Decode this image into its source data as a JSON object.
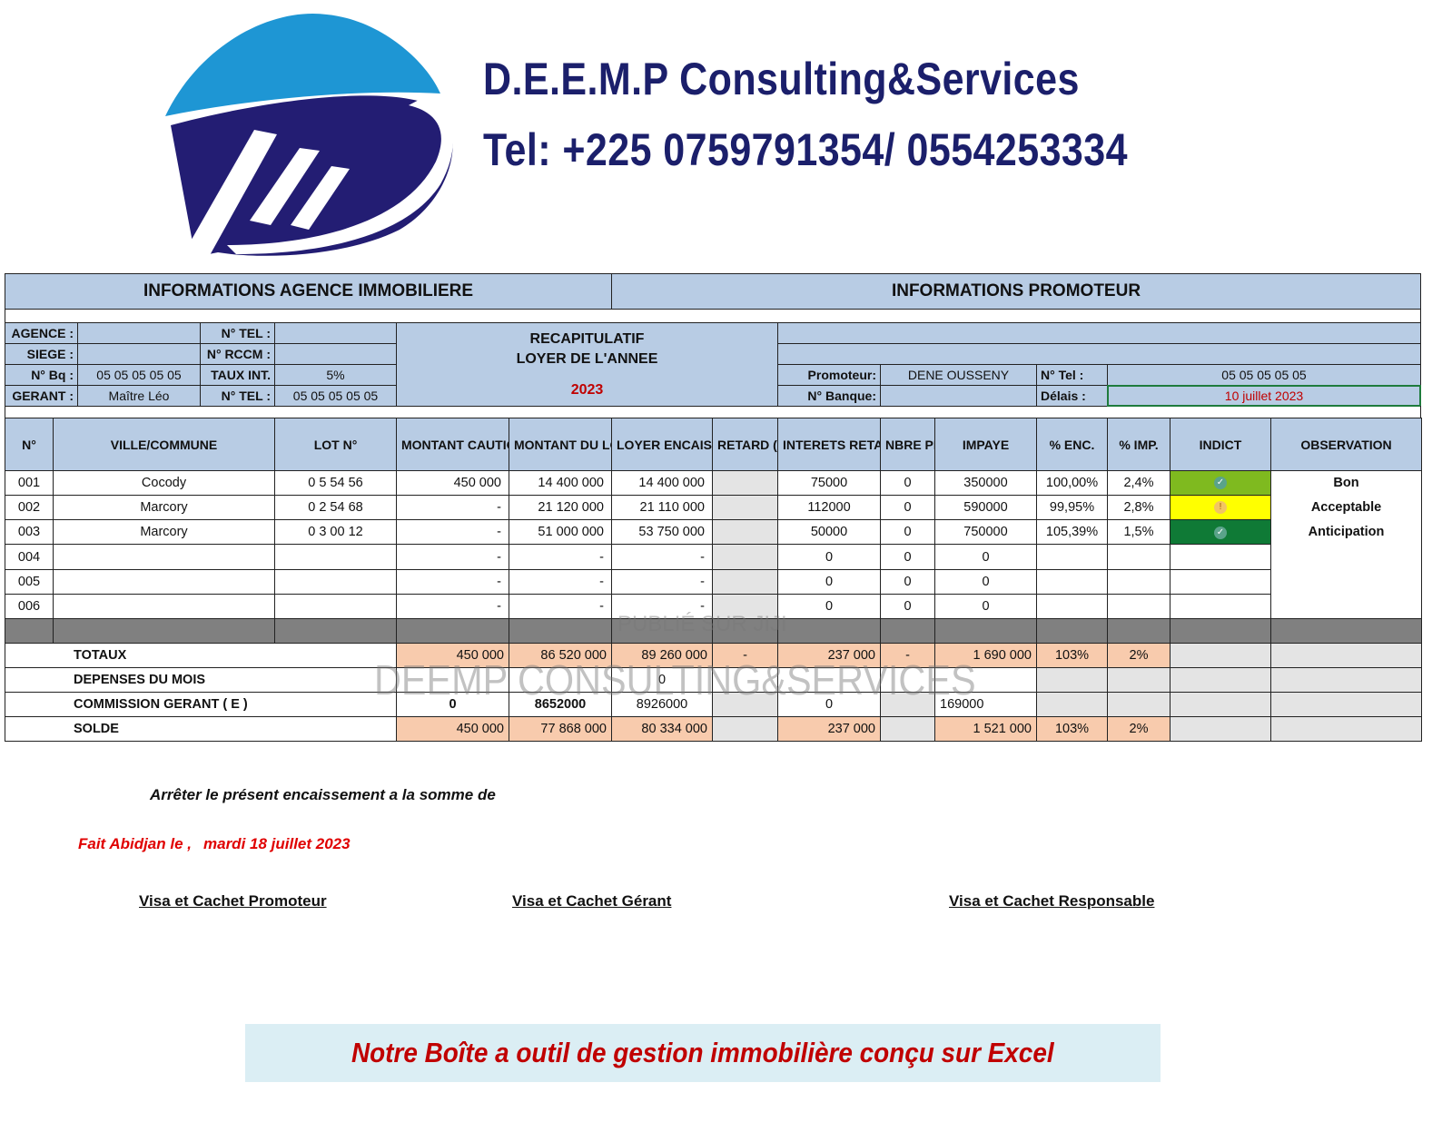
{
  "header": {
    "company": "D.E.E.M.P Consulting&Services",
    "phone": "Tel: +225 0759791354/ 0554253334"
  },
  "colors": {
    "navy": "#1b1f6b",
    "sky": "#1e96d4",
    "header_blue": "#b8cce4",
    "peach": "#f8cbad",
    "red": "#c00000"
  },
  "agency": {
    "title": "INFORMATIONS AGENCE IMMOBILIERE",
    "rows": [
      {
        "l1": "AGENCE :",
        "v1": "",
        "l2": "N° TEL :",
        "v2": ""
      },
      {
        "l1": "SIEGE :",
        "v1": "",
        "l2": "N° RCCM :",
        "v2": ""
      },
      {
        "l1": "N° Bq :",
        "v1": "05 05 05 05 05",
        "l2": "TAUX INT.",
        "v2": "5%"
      },
      {
        "l1": "GERANT :",
        "v1": "Maître Léo",
        "l2": "N° TEL :",
        "v2": "05 05 05 05 05"
      }
    ]
  },
  "recap": {
    "line1": "RECAPITULATIF",
    "line2": "LOYER DE L'ANNEE",
    "year": "2023"
  },
  "promoter": {
    "title": "INFORMATIONS PROMOTEUR",
    "promoteur_label": "Promoteur:",
    "promoteur_value": "DENE OUSSENY",
    "tel_label": "N° Tel :",
    "tel_value": "05 05 05 05 05",
    "banque_label": "N° Banque:",
    "banque_value": "",
    "delais_label": "Délais :",
    "delais_value": "10 juillet 2023"
  },
  "table": {
    "columns": [
      "N°",
      "VILLE/COMMUNE",
      "LOT N°",
      "MONTANT CAUTION",
      "MONTANT DU LOYER",
      "LOYER ENCAISSE",
      "RETARD (Jrs)",
      "INTERETS RETARDS",
      "NBRE PERS.",
      "IMPAYE",
      "% ENC.",
      "% IMP.",
      "INDICT",
      "OBSERVATION"
    ],
    "rows": [
      {
        "n": "001",
        "ville": "Cocody",
        "lot": "0 5 54 56",
        "caution": "450 000",
        "loyer": "14 400 000",
        "encaisse": "14 400 000",
        "retard": "",
        "interets": "75000",
        "nbre": "0",
        "impaye": "350000",
        "enc": "100,00%",
        "imp": "2,4%",
        "indict": "check",
        "indict_color": "#7fba1f",
        "obs": "Bon"
      },
      {
        "n": "002",
        "ville": "Marcory",
        "lot": "0 2 54 68",
        "caution": "-",
        "loyer": "21 120 000",
        "encaisse": "21 110 000",
        "retard": "",
        "interets": "112000",
        "nbre": "0",
        "impaye": "590000",
        "enc": "99,95%",
        "imp": "2,8%",
        "indict": "warning",
        "indict_color": "#ffff00",
        "obs": "Acceptable"
      },
      {
        "n": "003",
        "ville": "Marcory",
        "lot": "0 3 00 12",
        "caution": "-",
        "loyer": "51 000 000",
        "encaisse": "53 750 000",
        "retard": "",
        "interets": "50000",
        "nbre": "0",
        "impaye": "750000",
        "enc": "105,39%",
        "imp": "1,5%",
        "indict": "check",
        "indict_color": "#0f7a36",
        "obs": "Anticipation"
      },
      {
        "n": "004",
        "ville": "",
        "lot": "",
        "caution": "-",
        "loyer": "-",
        "encaisse": "-",
        "retard": "",
        "interets": "0",
        "nbre": "0",
        "impaye": "0",
        "enc": "",
        "imp": "",
        "indict": "",
        "indict_color": "",
        "obs": ""
      },
      {
        "n": "005",
        "ville": "",
        "lot": "",
        "caution": "-",
        "loyer": "-",
        "encaisse": "-",
        "retard": "",
        "interets": "0",
        "nbre": "0",
        "impaye": "0",
        "enc": "",
        "imp": "",
        "indict": "",
        "indict_color": "",
        "obs": ""
      },
      {
        "n": "006",
        "ville": "",
        "lot": "",
        "caution": "-",
        "loyer": "-",
        "encaisse": "-",
        "retard": "",
        "interets": "0",
        "nbre": "0",
        "impaye": "0",
        "enc": "",
        "imp": "",
        "indict": "",
        "indict_color": "",
        "obs": ""
      }
    ],
    "totaux": {
      "label": "TOTAUX",
      "caution": "450 000",
      "loyer": "86 520 000",
      "encaisse": "89 260 000",
      "retard": "-",
      "interets": "237 000",
      "nbre": "-",
      "impaye": "1 690 000",
      "enc": "103%",
      "imp": "2%"
    },
    "depenses": {
      "label": "DEPENSES DU MOIS",
      "encaisse": "0"
    },
    "commission": {
      "label": "COMMISSION GERANT ( E )",
      "caution": "0",
      "loyer": "8652000",
      "encaisse": "8926000",
      "interets": "0",
      "impaye": "169000"
    },
    "solde": {
      "label": "SOLDE",
      "caution": "450 000",
      "loyer": "77 868 000",
      "encaisse": "80 334 000",
      "interets": "237 000",
      "impaye": "1 521 000",
      "enc": "103%",
      "imp": "2%"
    }
  },
  "watermarks": {
    "jiji": "PUBLIÉ SUR JIJI",
    "company": "DEEMP CONSULTING&SERVICES"
  },
  "footer": {
    "arreter": "Arrêter le présent encaissement a la somme de",
    "fait_label": "Fait Abidjan le ,",
    "fait_date": "mardi 18 juillet 2023",
    "visa_promoteur": "Visa et Cachet Promoteur",
    "visa_gerant": "Visa et Cachet Gérant",
    "visa_responsable": "Visa et Cachet Responsable",
    "banner": "Notre Boîte a outil de gestion immobilière conçu sur Excel"
  }
}
